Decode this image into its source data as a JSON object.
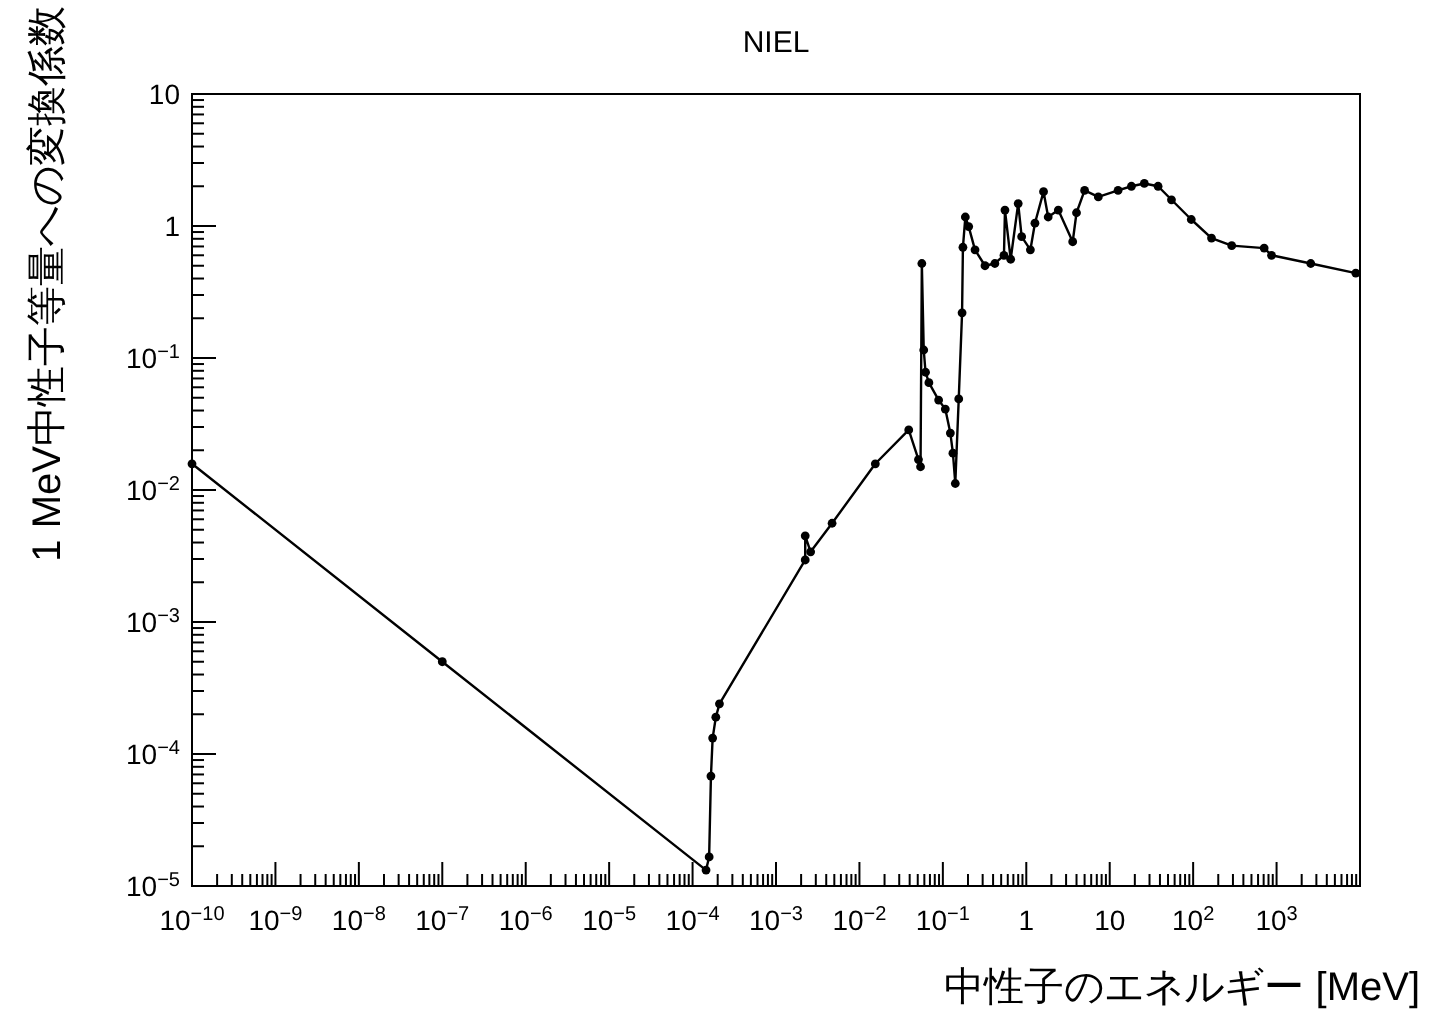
{
  "chart_data": {
    "type": "line",
    "title": "NIEL",
    "xlabel": "中性子のエネルギー [MeV]",
    "ylabel": "1 MeV中性子等量への変換係数",
    "log": "xy",
    "grid": false,
    "marker": "circle",
    "line_style": "solid",
    "xlim": [
      1e-10,
      10000
    ],
    "ylim": [
      1e-05,
      10
    ],
    "xticks": [
      {
        "value": 1e-10,
        "label": "10$^{−10}$"
      },
      {
        "value": 1e-09,
        "label": "10$^{−9}$"
      },
      {
        "value": 1e-08,
        "label": "10$^{−8}$"
      },
      {
        "value": 1e-07,
        "label": "10$^{−7}$"
      },
      {
        "value": 1e-06,
        "label": "10$^{−6}$"
      },
      {
        "value": 1e-05,
        "label": "10$^{−5}$"
      },
      {
        "value": 0.0001,
        "label": "10$^{−4}$"
      },
      {
        "value": 0.001,
        "label": "10$^{−3}$"
      },
      {
        "value": 0.01,
        "label": "10$^{−2}$"
      },
      {
        "value": 0.1,
        "label": "10$^{−1}$"
      },
      1,
      10,
      {
        "value": 100,
        "label": "10$^{2}$"
      },
      {
        "value": 1000,
        "label": "10$^{3}$"
      }
    ],
    "yticks": [
      {
        "value": 1e-05,
        "label": "10$^{−5}$"
      },
      {
        "value": 0.0001,
        "label": "10$^{−4}$"
      },
      {
        "value": 0.001,
        "label": "10$^{−3}$"
      },
      {
        "value": 0.01,
        "label": "10$^{−2}$"
      },
      {
        "value": 0.1,
        "label": "10$^{−1}$"
      },
      1,
      10
    ],
    "series": [
      {
        "color": "#000000",
        "x": [
          1e-10,
          1e-07,
          0.000145,
          0.000158,
          0.000166,
          0.000174,
          0.00019,
          0.00021,
          0.00224,
          0.00224,
          0.0026,
          0.0047,
          0.0155,
          0.039,
          0.051,
          0.054,
          0.056,
          0.059,
          0.062,
          0.068,
          0.089,
          0.107,
          0.123,
          0.132,
          0.141,
          0.155,
          0.17,
          0.174,
          0.186,
          0.204,
          0.243,
          0.32,
          0.42,
          0.54,
          0.555,
          0.65,
          0.8,
          0.88,
          1.12,
          1.27,
          1.61,
          1.83,
          2.42,
          3.6,
          4.0,
          5.0,
          7.3,
          12.6,
          18.2,
          26,
          38,
          55,
          95,
          166,
          290,
          710,
          870,
          2570,
          8900
        ],
        "values": [
          0.0158,
          0.0005,
          1.32e-05,
          1.66e-05,
          6.8e-05,
          0.000132,
          0.00019,
          0.00024,
          0.00295,
          0.0045,
          0.0034,
          0.0056,
          0.0158,
          0.0285,
          0.017,
          0.015,
          0.52,
          0.115,
          0.078,
          0.065,
          0.048,
          0.041,
          0.027,
          0.019,
          0.0112,
          0.049,
          0.22,
          0.69,
          1.17,
          0.99,
          0.66,
          0.5,
          0.52,
          0.6,
          1.32,
          0.56,
          1.48,
          0.83,
          0.66,
          1.05,
          1.82,
          1.17,
          1.32,
          0.76,
          1.26,
          1.86,
          1.66,
          1.86,
          2.0,
          2.1,
          2.0,
          1.58,
          1.12,
          0.81,
          0.71,
          0.68,
          0.6,
          0.52,
          0.44
        ]
      }
    ]
  }
}
